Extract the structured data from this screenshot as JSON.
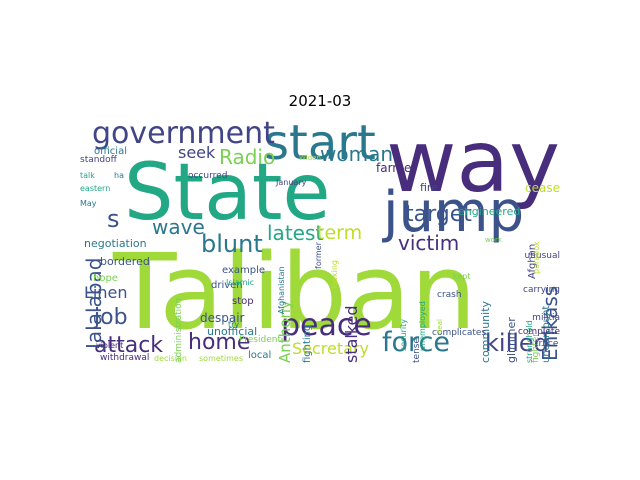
{
  "title": "2021-03",
  "words": [
    {
      "text": "Taliban",
      "color": "#9fd93a"
    },
    {
      "text": "State",
      "color": "#22a884"
    },
    {
      "text": "way",
      "color": "#472d7b"
    },
    {
      "text": "jump",
      "color": "#3b528b"
    },
    {
      "text": "start",
      "color": "#2a788e"
    },
    {
      "text": "government",
      "color": "#414487"
    },
    {
      "text": "peace",
      "color": "#472d7b"
    },
    {
      "text": "force",
      "color": "#2a788e"
    },
    {
      "text": "killed",
      "color": "#414487"
    },
    {
      "text": "victim",
      "color": "#472d7b"
    },
    {
      "text": "target",
      "color": "#3b528b"
    },
    {
      "text": "woman",
      "color": "#2a788e"
    },
    {
      "text": "Radio",
      "color": "#7ad151"
    },
    {
      "text": "wave",
      "color": "#2a788e"
    },
    {
      "text": "blunt",
      "color": "#2a788e"
    },
    {
      "text": "latest",
      "color": "#22a884"
    },
    {
      "text": "term",
      "color": "#bddf26"
    },
    {
      "text": "attack",
      "color": "#472d7b"
    },
    {
      "text": "home",
      "color": "#472d7b"
    },
    {
      "text": "Secretary",
      "color": "#bddf26"
    },
    {
      "text": "job",
      "color": "#3b528b"
    },
    {
      "text": "Linen",
      "color": "#3b528b"
    },
    {
      "text": "Jalalabad",
      "color": "#3b528b"
    },
    {
      "text": "Enikass",
      "color": "#3b528b"
    },
    {
      "text": "s",
      "color": "#3b528b"
    },
    {
      "text": "seek",
      "color": "#414487"
    },
    {
      "text": "stalked",
      "color": "#472d7b"
    },
    {
      "text": "Anthony",
      "color": "#7ad151"
    },
    {
      "text": "fighting",
      "color": "#2a788e"
    },
    {
      "text": "farmer",
      "color": "#472d7b"
    },
    {
      "text": "fire",
      "color": "#414487"
    },
    {
      "text": "cease",
      "color": "#bddf26"
    },
    {
      "text": "engineered",
      "color": "#22a884"
    },
    {
      "text": "undercount",
      "color": "#2a788e"
    },
    {
      "text": "Afghan",
      "color": "#414487"
    },
    {
      "text": "Afghanistan",
      "color": "#2a788e"
    },
    {
      "text": "negotiation",
      "color": "#2a788e"
    },
    {
      "text": "bordered",
      "color": "#3b528b"
    },
    {
      "text": "official",
      "color": "#2a788e"
    },
    {
      "text": "standoff",
      "color": "#414487"
    },
    {
      "text": "talk",
      "color": "#22a884"
    },
    {
      "text": "ha",
      "color": "#2a788e"
    },
    {
      "text": "eastern",
      "color": "#22a884"
    },
    {
      "text": "May",
      "color": "#2a788e"
    },
    {
      "text": "hope",
      "color": "#7ad151"
    },
    {
      "text": "violent",
      "color": "#472d7b"
    },
    {
      "text": "withdrawal",
      "color": "#472d7b"
    },
    {
      "text": "decision",
      "color": "#9fd93a"
    },
    {
      "text": "sometimes",
      "color": "#9fd93a"
    },
    {
      "text": "local",
      "color": "#2a788e"
    },
    {
      "text": "unofficial",
      "color": "#2a788e"
    },
    {
      "text": "despair",
      "color": "#3b528b"
    },
    {
      "text": "stop",
      "color": "#472d7b"
    },
    {
      "text": "driven",
      "color": "#3b528b"
    },
    {
      "text": "example",
      "color": "#3b528b"
    },
    {
      "text": "Islamic",
      "color": "#22a884"
    },
    {
      "text": "try",
      "color": "#2a788e"
    },
    {
      "text": "President",
      "color": "#7ad151"
    },
    {
      "text": "administration",
      "color": "#7ad151"
    },
    {
      "text": "occurred",
      "color": "#414487"
    },
    {
      "text": "January",
      "color": "#414487"
    },
    {
      "text": "Widen",
      "color": "#9fd93a"
    },
    {
      "text": "former",
      "color": "#3b528b"
    },
    {
      "text": "looking",
      "color": "#bddf26"
    },
    {
      "text": "community",
      "color": "#2a788e"
    },
    {
      "text": "glimmer",
      "color": "#3b528b"
    },
    {
      "text": "fighter",
      "color": "#7ad151"
    },
    {
      "text": "stronghold",
      "color": "#22a884"
    },
    {
      "text": "crash",
      "color": "#3b528b"
    },
    {
      "text": "complicates",
      "color": "#3b528b"
    },
    {
      "text": "complete",
      "color": "#472d7b"
    },
    {
      "text": "militia",
      "color": "#414487"
    },
    {
      "text": "truce",
      "color": "#414487"
    },
    {
      "text": "carrying",
      "color": "#414487"
    },
    {
      "text": "unusual",
      "color": "#414487"
    },
    {
      "text": "kept",
      "color": "#7ad151"
    },
    {
      "text": "tense",
      "color": "#3b528b"
    },
    {
      "text": "unemployed",
      "color": "#22a884"
    },
    {
      "text": "security",
      "color": "#22a884"
    },
    {
      "text": "work",
      "color": "#7ad151"
    },
    {
      "text": "deal",
      "color": "#9fd93a"
    },
    {
      "text": "paradox",
      "color": "#bddf26"
    }
  ]
}
